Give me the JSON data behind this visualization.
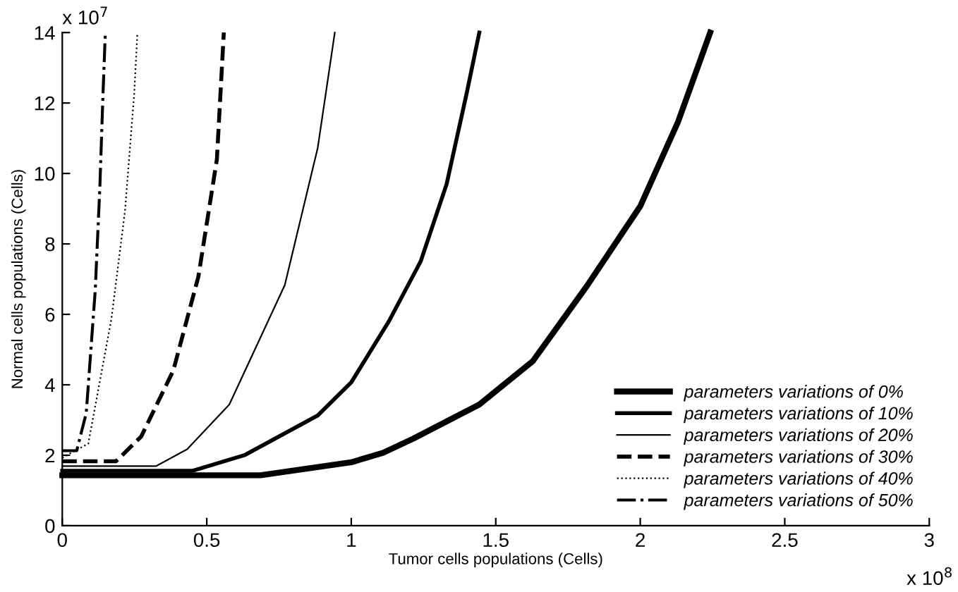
{
  "chart_data": {
    "type": "line",
    "xlabel": "Tumor cells populations (Cells)",
    "ylabel": "Normal cells populations (Cells)",
    "annotations": [
      "x 10$^{7}$",
      "x 10$^{8}$"
    ],
    "xlim": [
      0,
      3
    ],
    "xticks": [
      0,
      0.5,
      1,
      1.5,
      2,
      2.5,
      3
    ],
    "ylim": [
      0,
      14
    ],
    "yticks": [
      0,
      2,
      4,
      6,
      8,
      10,
      12,
      14
    ],
    "grid": false,
    "legend": "bottom right",
    "marker": "none",
    "series": [
      {
        "name": "parameters variations of 0%",
        "color": "#000000",
        "line_style": "solid",
        "x": [
          0,
          0.686,
          1.0,
          1.11,
          1.214,
          1.443,
          1.628,
          1.815,
          2.0,
          2.131,
          2.242
        ],
        "values": [
          1.43,
          1.43,
          1.8,
          2.07,
          2.47,
          3.44,
          4.67,
          6.8,
          9.07,
          11.47,
          14
        ]
      },
      {
        "name": "parameters variations of 10%",
        "color": "#000000",
        "line_style": "solid",
        "x": [
          0,
          0.452,
          0.63,
          0.884,
          1.0,
          1.13,
          1.24,
          1.33,
          1.4,
          1.443
        ],
        "values": [
          1.56,
          1.56,
          2.0,
          3.13,
          4.07,
          5.8,
          7.5,
          9.7,
          12.3,
          14
        ]
      },
      {
        "name": "parameters variations of 20%",
        "color": "#000000",
        "line_style": "solid",
        "x": [
          0,
          0.324,
          0.432,
          0.578,
          0.77,
          0.884,
          0.943
        ],
        "values": [
          1.69,
          1.69,
          2.17,
          3.44,
          6.83,
          10.73,
          14
        ]
      },
      {
        "name": "parameters variations of 30%",
        "color": "#000000",
        "line_style": "dashed",
        "x": [
          0,
          0.186,
          0.273,
          0.384,
          0.471,
          0.535,
          0.559
        ],
        "values": [
          1.83,
          1.83,
          2.53,
          4.4,
          7.07,
          10.4,
          14
        ]
      },
      {
        "name": "parameters variations of 40%",
        "color": "#000000",
        "line_style": "dotted",
        "x": [
          0,
          0.09,
          0.17,
          0.217,
          0.249,
          0.26
        ],
        "values": [
          1.93,
          2.33,
          5.87,
          8.93,
          12.27,
          14
        ]
      },
      {
        "name": "parameters variations of 50%",
        "color": "#000000",
        "line_style": "dashdot",
        "x": [
          0,
          0.05,
          0.083,
          0.114,
          0.13,
          0.141,
          0.149
        ],
        "values": [
          2.13,
          2.13,
          3.2,
          6.67,
          9.6,
          12.27,
          14
        ]
      }
    ]
  }
}
